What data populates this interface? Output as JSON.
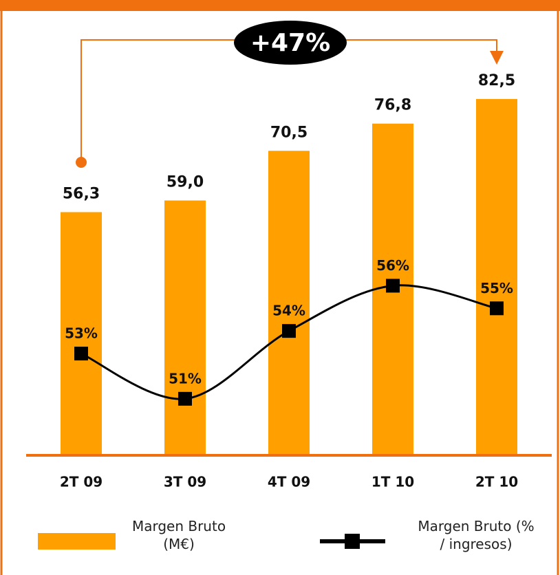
{
  "chart_data": {
    "type": "bar",
    "categories": [
      "2T 09",
      "3T 09",
      "4T 09",
      "1T 10",
      "2T 10"
    ],
    "series": [
      {
        "name": "Margen Bruto (M€)",
        "type": "bar",
        "color": "#ffa000",
        "values": [
          56.3,
          59.0,
          70.5,
          76.8,
          82.5
        ],
        "value_labels": [
          "56,3",
          "59,0",
          "70,5",
          "76,8",
          "82,5"
        ]
      },
      {
        "name": "Margen Bruto (% / ingresos)",
        "type": "line",
        "axis": "y2",
        "color": "#000000",
        "values": [
          53,
          51,
          54,
          56,
          55
        ],
        "value_labels": [
          "53%",
          "51%",
          "54%",
          "56%",
          "55%"
        ]
      }
    ],
    "ylim": [
      0,
      100
    ],
    "y2lim": [
      48.5,
      67.6
    ],
    "annotation": "+47%",
    "accent_color": "#f07010"
  }
}
